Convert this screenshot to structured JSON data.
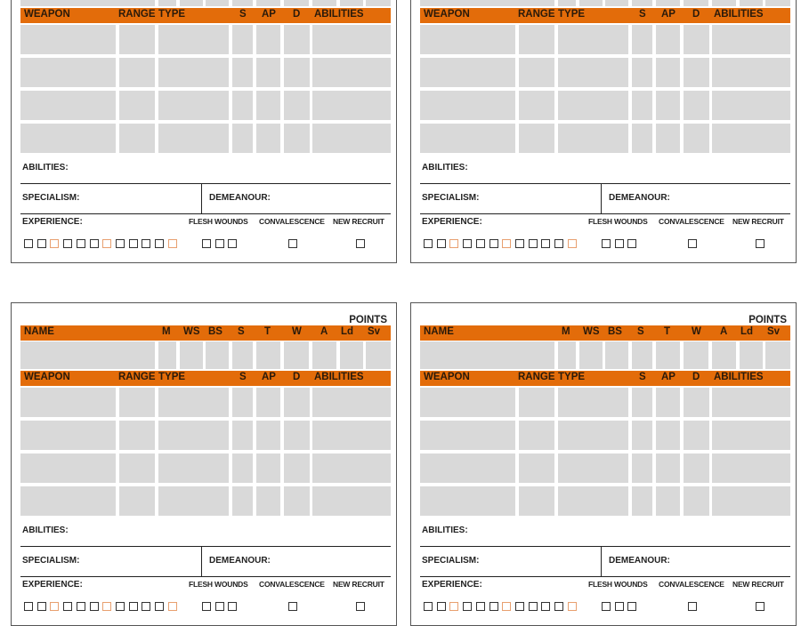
{
  "colors": {
    "accent": "#E36C0A",
    "cell": "#D9D9D9",
    "accent_box": "#E8A070"
  },
  "card": {
    "points_label": "POINTS",
    "stat_headers": [
      "NAME",
      "M",
      "WS",
      "BS",
      "S",
      "T",
      "W",
      "A",
      "Ld",
      "Sv"
    ],
    "weapon_headers": [
      "WEAPON",
      "RANGE",
      "TYPE",
      "S",
      "AP",
      "D",
      "ABILITIES"
    ],
    "abilities_label": "ABILITIES:",
    "specialism_label": "SPECIALISM:",
    "demeanour_label": "DEMEANOUR:",
    "experience_label": "EXPERIENCE:",
    "flesh_wounds_label": "FLESH WOUNDS",
    "convalescence_label": "CONVALESCENCE",
    "new_recruit_label": "NEW RECRUIT",
    "experience_boxes": 12,
    "experience_highlighted": [
      3,
      7,
      12
    ],
    "flesh_wound_boxes": 3,
    "convalescence_boxes": 1,
    "new_recruit_boxes": 1
  },
  "cards": [
    {
      "id": "top-left"
    },
    {
      "id": "top-right"
    },
    {
      "id": "bottom-left"
    },
    {
      "id": "bottom-right"
    }
  ]
}
